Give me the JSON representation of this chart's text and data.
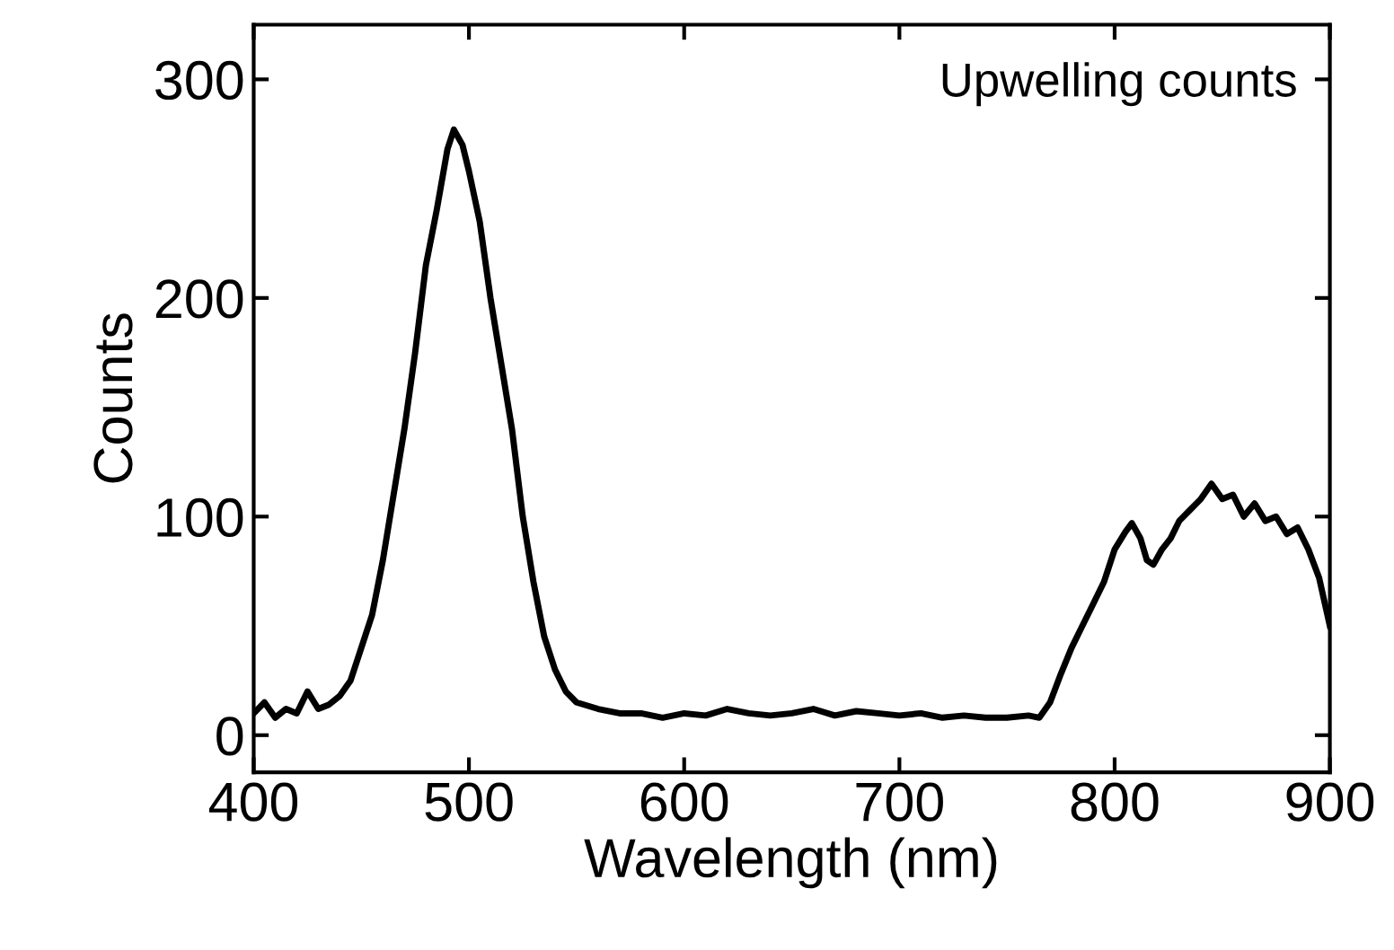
{
  "chart_data": {
    "type": "line",
    "xlabel": "Wavelength (nm)",
    "ylabel": "Counts",
    "annotations": [
      "Upwelling counts"
    ],
    "x": [
      400,
      405,
      410,
      415,
      420,
      425,
      430,
      435,
      440,
      445,
      450,
      455,
      460,
      465,
      470,
      475,
      480,
      485,
      490,
      493,
      497,
      500,
      505,
      510,
      515,
      520,
      525,
      530,
      535,
      540,
      545,
      550,
      560,
      570,
      580,
      590,
      600,
      610,
      620,
      630,
      640,
      650,
      660,
      670,
      680,
      690,
      700,
      710,
      720,
      730,
      740,
      750,
      760,
      765,
      770,
      775,
      780,
      785,
      790,
      795,
      800,
      805,
      808,
      812,
      815,
      818,
      822,
      826,
      830,
      835,
      840,
      845,
      850,
      855,
      860,
      865,
      870,
      875,
      880,
      885,
      890,
      895,
      900
    ],
    "series": [
      {
        "color": "#000000",
        "values": [
          10,
          15,
          8,
          12,
          10,
          20,
          12,
          14,
          18,
          25,
          40,
          55,
          80,
          110,
          140,
          175,
          215,
          240,
          268,
          277,
          270,
          258,
          235,
          200,
          170,
          140,
          100,
          70,
          45,
          30,
          20,
          15,
          12,
          10,
          10,
          8,
          10,
          9,
          12,
          10,
          9,
          10,
          12,
          9,
          11,
          10,
          9,
          10,
          8,
          9,
          8,
          8,
          9,
          8,
          15,
          28,
          40,
          50,
          60,
          70,
          85,
          93,
          97,
          90,
          80,
          78,
          85,
          90,
          98,
          103,
          108,
          115,
          108,
          110,
          100,
          106,
          98,
          100,
          92,
          95,
          85,
          72,
          50
        ]
      }
    ],
    "xlim": [
      400,
      900
    ],
    "ylim": [
      -17,
      325
    ],
    "xticks": [
      400,
      500,
      600,
      700,
      800,
      900
    ],
    "yticks": [
      0,
      100,
      200,
      300
    ],
    "grid": false,
    "legend": false,
    "marker": "none",
    "line_style": "solid"
  }
}
